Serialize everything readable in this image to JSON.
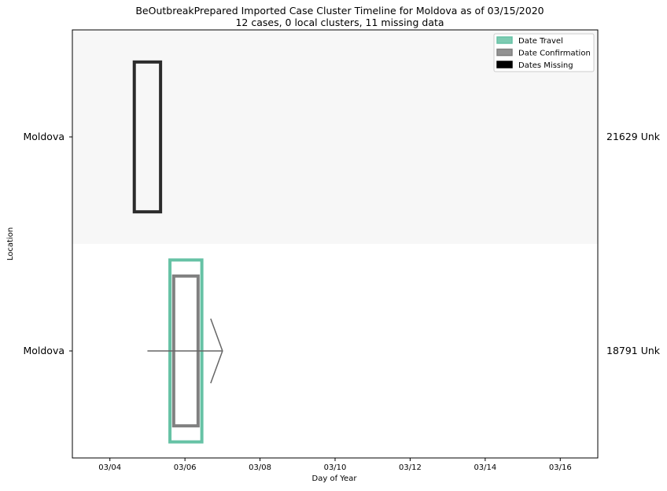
{
  "chart_data": {
    "type": "timeline",
    "title": "BeOutbreakPrepared Imported Case Cluster Timeline for Moldova as of 03/15/2020",
    "subtitle": "12 cases, 0 local clusters, 11 missing data",
    "xlabel": "Day of Year",
    "ylabel": "Location",
    "x_ticks": [
      "03/04",
      "03/06",
      "03/08",
      "03/10",
      "03/12",
      "03/14",
      "03/16"
    ],
    "xlim": [
      "03/03",
      "03/17"
    ],
    "legend": {
      "position": "top-right",
      "items": [
        {
          "label": "Date Travel",
          "color": "#66c2a5"
        },
        {
          "label": "Date Confirmation",
          "color": "#808080"
        },
        {
          "label": "Dates Missing",
          "color": "#000000"
        }
      ]
    },
    "rows": [
      {
        "location": "Moldova",
        "case_label": "21629 Unk",
        "shaded": true,
        "bars": [
          {
            "kind": "missing",
            "start": "03/04.65",
            "end": "03/05.35",
            "color": "#2b2b2b"
          }
        ]
      },
      {
        "location": "Moldova",
        "case_label": "18791 Unk",
        "shaded": false,
        "bars": [
          {
            "kind": "travel",
            "start": "03/05.6",
            "end": "03/06.45",
            "color": "#66c2a5"
          },
          {
            "kind": "confirmation",
            "start": "03/05.7",
            "end": "03/06.35",
            "color": "#808080"
          }
        ],
        "arrow": {
          "from": "03/05",
          "to": "03/07",
          "color": "#666666"
        }
      }
    ],
    "colors": {
      "shaded_band": "#f7f7f7",
      "axis": "#000000"
    }
  }
}
